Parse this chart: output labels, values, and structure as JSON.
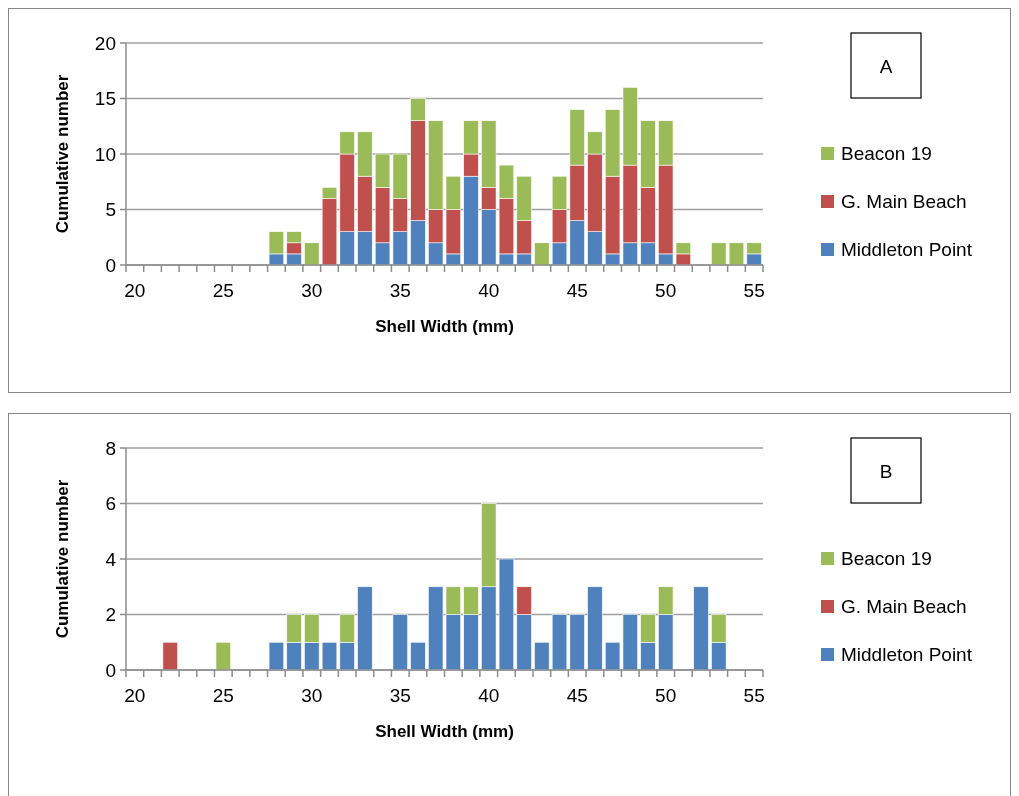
{
  "chart_data": [
    {
      "type": "bar",
      "stacked": true,
      "xlabel": "Shell Width (mm)",
      "ylabel": "Cumulative number",
      "annotations": [
        "A"
      ],
      "categories": [
        "20",
        null,
        null,
        null,
        null,
        "25",
        null,
        null,
        null,
        null,
        "30",
        null,
        null,
        null,
        null,
        "35",
        null,
        null,
        null,
        null,
        "40",
        null,
        null,
        null,
        null,
        "45",
        null,
        null,
        null,
        null,
        "50",
        null,
        null,
        null,
        null,
        "55"
      ],
      "series": [
        {
          "name": "Middleton Point",
          "color": "#4f81bd",
          "values": [
            0,
            0,
            0,
            0,
            0,
            0,
            0,
            0,
            1,
            1,
            0,
            0,
            3,
            3,
            2,
            3,
            4,
            2,
            1,
            8,
            5,
            1,
            1,
            0,
            2,
            4,
            3,
            1,
            2,
            2,
            1,
            0,
            0,
            0,
            0,
            1
          ]
        },
        {
          "name": "G. Main Beach",
          "color": "#c0504d",
          "values": [
            0,
            0,
            0,
            0,
            0,
            0,
            0,
            0,
            0,
            1,
            0,
            6,
            7,
            5,
            5,
            3,
            9,
            3,
            4,
            2,
            2,
            5,
            3,
            0,
            3,
            5,
            7,
            7,
            7,
            5,
            8,
            1,
            0,
            0,
            0,
            0
          ]
        },
        {
          "name": "Beacon 19",
          "color": "#9bbb59",
          "values": [
            0,
            0,
            0,
            0,
            0,
            0,
            0,
            0,
            2,
            1,
            2,
            1,
            2,
            4,
            3,
            4,
            2,
            8,
            3,
            3,
            6,
            3,
            4,
            2,
            3,
            5,
            2,
            6,
            7,
            6,
            4,
            1,
            0,
            2,
            2,
            1
          ]
        }
      ],
      "ylim": [
        0,
        20
      ],
      "yticks": [
        0,
        5,
        10,
        15,
        20
      ],
      "grid": "y",
      "legend": "right"
    },
    {
      "type": "bar",
      "stacked": true,
      "xlabel": "Shell Width (mm)",
      "ylabel": "Cumulative number",
      "annotations": [
        "B"
      ],
      "categories": [
        "20",
        null,
        null,
        null,
        null,
        "25",
        null,
        null,
        null,
        null,
        "30",
        null,
        null,
        null,
        null,
        "35",
        null,
        null,
        null,
        null,
        "40",
        null,
        null,
        null,
        null,
        "45",
        null,
        null,
        null,
        null,
        "50",
        null,
        null,
        null,
        null,
        "55"
      ],
      "series": [
        {
          "name": "Middleton Point",
          "color": "#4f81bd",
          "values": [
            0,
            0,
            0,
            0,
            0,
            0,
            0,
            0,
            1,
            1,
            1,
            1,
            1,
            3,
            0,
            2,
            1,
            3,
            2,
            2,
            3,
            4,
            2,
            1,
            2,
            2,
            3,
            1,
            2,
            1,
            2,
            0,
            3,
            1,
            0,
            0
          ]
        },
        {
          "name": "G. Main Beach",
          "color": "#c0504d",
          "values": [
            0,
            0,
            1,
            0,
            0,
            0,
            0,
            0,
            0,
            0,
            0,
            0,
            0,
            0,
            0,
            0,
            0,
            0,
            0,
            0,
            0,
            0,
            1,
            0,
            0,
            0,
            0,
            0,
            0,
            0,
            0,
            0,
            0,
            0,
            0,
            0
          ]
        },
        {
          "name": "Beacon 19",
          "color": "#9bbb59",
          "values": [
            0,
            0,
            0,
            0,
            0,
            1,
            0,
            0,
            0,
            1,
            1,
            0,
            1,
            0,
            0,
            0,
            0,
            0,
            1,
            1,
            3,
            0,
            0,
            0,
            0,
            0,
            0,
            0,
            0,
            1,
            1,
            0,
            0,
            1,
            0,
            0
          ]
        }
      ],
      "ylim": [
        0,
        8
      ],
      "yticks": [
        0,
        2,
        4,
        6,
        8
      ],
      "grid": "y",
      "legend": "right"
    }
  ]
}
